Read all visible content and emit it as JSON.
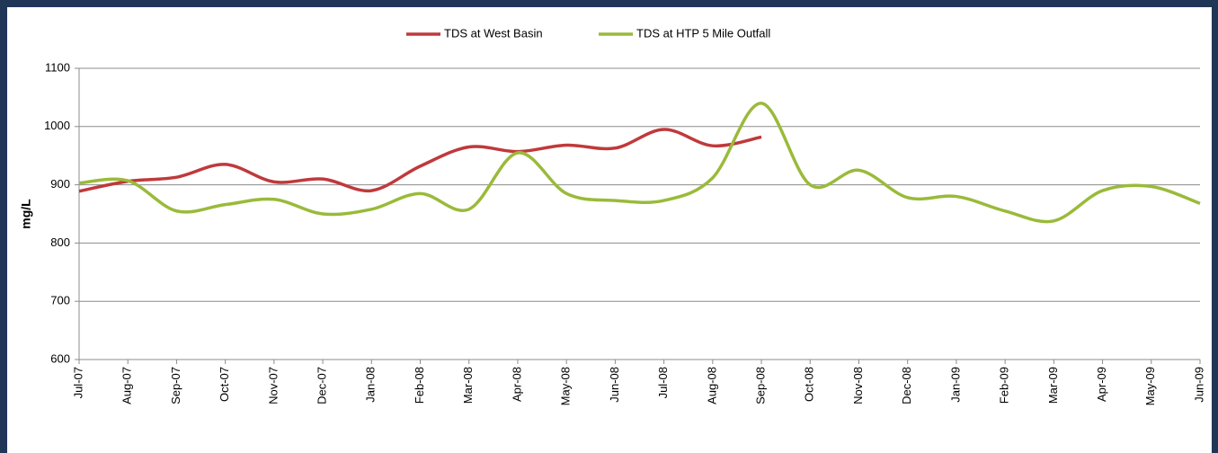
{
  "chart_data": {
    "type": "line",
    "y_label": "mg/L",
    "categories": [
      "Jul-07",
      "Aug-07",
      "Sep-07",
      "Oct-07",
      "Nov-07",
      "Dec-07",
      "Jan-08",
      "Feb-08",
      "Mar-08",
      "Apr-08",
      "May-08",
      "Jun-08",
      "Jul-08",
      "Aug-08",
      "Sep-08",
      "Oct-08",
      "Nov-08",
      "Dec-08",
      "Jan-09",
      "Feb-09",
      "Mar-09",
      "Apr-09",
      "May-09",
      "Jun-09"
    ],
    "series": [
      {
        "name": "TDS at West Basin",
        "color": "#c0393b",
        "values": [
          889,
          906,
          913,
          935,
          905,
          910,
          890,
          932,
          965,
          957,
          968,
          963,
          995,
          967,
          982,
          null,
          null,
          null,
          null,
          null,
          null,
          null,
          null,
          null
        ]
      },
      {
        "name": "TDS at HTP 5 Mile Outfall",
        "color": "#9aba3a",
        "values": [
          903,
          907,
          855,
          866,
          875,
          850,
          858,
          885,
          858,
          955,
          885,
          873,
          873,
          912,
          1040,
          900,
          925,
          878,
          880,
          855,
          838,
          890,
          897,
          868
        ]
      }
    ],
    "ylim": [
      600,
      1100
    ],
    "yticks": [
      600,
      700,
      800,
      900,
      1000,
      1100
    ],
    "grid": true,
    "legend": "top"
  }
}
